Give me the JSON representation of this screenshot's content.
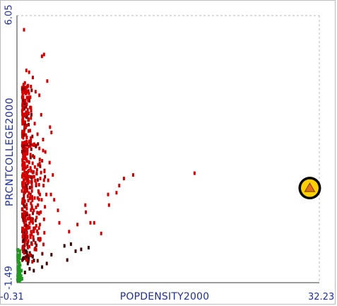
{
  "chart_data": {
    "type": "scatter",
    "title": "",
    "xlabel": "POPDENSITY2000",
    "ylabel": "PRCNTCOLLEGE2000",
    "xlim": [
      -0.31,
      32.23
    ],
    "ylim": [
      -1.49,
      6.05
    ],
    "x_ticks": [
      "-0.31",
      "32.23"
    ],
    "y_ticks": [
      "-1.49",
      "6.05"
    ],
    "grid": false,
    "colors": {
      "red": "#d20000",
      "dark": "#400000",
      "green": "#1e9a1e",
      "axis": "#1f2f9a",
      "highlight_ring": "#000000",
      "highlight_fill": "#ffd000",
      "highlight_core": "#e2701a"
    },
    "highlight": {
      "x": 31.2,
      "y": 1.18,
      "shape": "triangle"
    },
    "points": [
      {
        "x": 0.45,
        "y": 5.65,
        "c": "red"
      },
      {
        "x": 2.38,
        "y": 4.9,
        "c": "red"
      },
      {
        "x": 2.6,
        "y": 4.95,
        "c": "red"
      },
      {
        "x": 0.7,
        "y": 4.5,
        "c": "red"
      },
      {
        "x": 1.0,
        "y": 4.45,
        "c": "red"
      },
      {
        "x": 1.4,
        "y": 4.3,
        "c": "red"
      },
      {
        "x": 0.55,
        "y": 4.15,
        "c": "red"
      },
      {
        "x": 1.7,
        "y": 3.9,
        "c": "red"
      },
      {
        "x": 2.1,
        "y": 3.8,
        "c": "red"
      },
      {
        "x": 2.95,
        "y": 4.2,
        "c": "red"
      },
      {
        "x": 0.75,
        "y": 3.55,
        "c": "red"
      },
      {
        "x": 1.2,
        "y": 3.45,
        "c": "red"
      },
      {
        "x": 2.3,
        "y": 3.25,
        "c": "red"
      },
      {
        "x": 0.9,
        "y": 3.1,
        "c": "red"
      },
      {
        "x": 1.6,
        "y": 3.0,
        "c": "red"
      },
      {
        "x": 3.25,
        "y": 2.9,
        "c": "red"
      },
      {
        "x": 3.4,
        "y": 2.75,
        "c": "red"
      },
      {
        "x": 0.5,
        "y": 2.9,
        "c": "red"
      },
      {
        "x": 1.1,
        "y": 2.8,
        "c": "red"
      },
      {
        "x": 1.9,
        "y": 2.7,
        "c": "red"
      },
      {
        "x": 2.5,
        "y": 2.55,
        "c": "red"
      },
      {
        "x": 0.65,
        "y": 2.45,
        "c": "red"
      },
      {
        "x": 1.35,
        "y": 2.4,
        "c": "red"
      },
      {
        "x": 2.1,
        "y": 2.3,
        "c": "red"
      },
      {
        "x": 2.75,
        "y": 2.2,
        "c": "red"
      },
      {
        "x": 0.8,
        "y": 2.15,
        "c": "red"
      },
      {
        "x": 1.55,
        "y": 2.05,
        "c": "red"
      },
      {
        "x": 2.4,
        "y": 1.95,
        "c": "red"
      },
      {
        "x": 3.2,
        "y": 1.9,
        "c": "red"
      },
      {
        "x": 0.45,
        "y": 1.85,
        "c": "red"
      },
      {
        "x": 1.15,
        "y": 1.75,
        "c": "red"
      },
      {
        "x": 1.85,
        "y": 1.7,
        "c": "red"
      },
      {
        "x": 2.65,
        "y": 1.65,
        "c": "red"
      },
      {
        "x": 0.7,
        "y": 1.55,
        "c": "red"
      },
      {
        "x": 1.45,
        "y": 1.5,
        "c": "red"
      },
      {
        "x": 2.2,
        "y": 1.45,
        "c": "red"
      },
      {
        "x": 3.05,
        "y": 1.4,
        "c": "red"
      },
      {
        "x": 0.95,
        "y": 1.35,
        "c": "red"
      },
      {
        "x": 1.75,
        "y": 1.3,
        "c": "red"
      },
      {
        "x": 2.55,
        "y": 1.25,
        "c": "red"
      },
      {
        "x": 0.55,
        "y": 1.15,
        "c": "red"
      },
      {
        "x": 1.3,
        "y": 1.1,
        "c": "red"
      },
      {
        "x": 2.05,
        "y": 1.05,
        "c": "red"
      },
      {
        "x": 2.85,
        "y": 1.0,
        "c": "red"
      },
      {
        "x": 0.85,
        "y": 0.95,
        "c": "red"
      },
      {
        "x": 1.6,
        "y": 0.9,
        "c": "red"
      },
      {
        "x": 2.35,
        "y": 0.85,
        "c": "red"
      },
      {
        "x": 0.4,
        "y": 0.8,
        "c": "red"
      },
      {
        "x": 1.2,
        "y": 0.75,
        "c": "red"
      },
      {
        "x": 1.95,
        "y": 0.7,
        "c": "red"
      },
      {
        "x": 2.7,
        "y": 0.65,
        "c": "red"
      },
      {
        "x": 0.75,
        "y": 0.6,
        "c": "red"
      },
      {
        "x": 1.5,
        "y": 0.55,
        "c": "red"
      },
      {
        "x": 2.25,
        "y": 0.5,
        "c": "red"
      },
      {
        "x": 0.5,
        "y": 0.45,
        "c": "red"
      },
      {
        "x": 1.05,
        "y": 0.4,
        "c": "red"
      },
      {
        "x": 1.8,
        "y": 0.35,
        "c": "red"
      },
      {
        "x": 2.6,
        "y": 0.3,
        "c": "red"
      },
      {
        "x": 0.65,
        "y": 0.25,
        "c": "red"
      },
      {
        "x": 1.4,
        "y": 0.2,
        "c": "red"
      },
      {
        "x": 2.15,
        "y": 0.15,
        "c": "red"
      },
      {
        "x": 0.9,
        "y": 0.1,
        "c": "red"
      },
      {
        "x": 1.65,
        "y": 0.05,
        "c": "red"
      },
      {
        "x": 0.45,
        "y": 0.0,
        "c": "red"
      },
      {
        "x": 1.2,
        "y": -0.05,
        "c": "red"
      },
      {
        "x": 1.95,
        "y": -0.1,
        "c": "red"
      },
      {
        "x": 0.7,
        "y": -0.15,
        "c": "red"
      },
      {
        "x": 1.45,
        "y": -0.2,
        "c": "red"
      },
      {
        "x": 2.2,
        "y": -0.25,
        "c": "red"
      },
      {
        "x": 0.55,
        "y": -0.35,
        "c": "red"
      },
      {
        "x": 1.3,
        "y": -0.4,
        "c": "red"
      },
      {
        "x": 0.85,
        "y": -0.5,
        "c": "red"
      },
      {
        "x": 1.6,
        "y": -0.55,
        "c": "red"
      },
      {
        "x": 0.45,
        "y": -0.65,
        "c": "red"
      },
      {
        "x": 1.1,
        "y": -0.7,
        "c": "red"
      },
      {
        "x": 0.7,
        "y": -0.85,
        "c": "red"
      },
      {
        "x": 1.35,
        "y": -0.9,
        "c": "red"
      },
      {
        "x": 3.35,
        "y": 1.0,
        "c": "red"
      },
      {
        "x": 3.55,
        "y": 1.55,
        "c": "red"
      },
      {
        "x": 3.7,
        "y": 0.85,
        "c": "red"
      },
      {
        "x": 4.1,
        "y": 0.55,
        "c": "red"
      },
      {
        "x": 4.25,
        "y": 0.2,
        "c": "red"
      },
      {
        "x": 5.3,
        "y": -0.05,
        "c": "red"
      },
      {
        "x": 6.2,
        "y": 0.15,
        "c": "red"
      },
      {
        "x": 7.05,
        "y": 0.7,
        "c": "red"
      },
      {
        "x": 7.1,
        "y": 0.5,
        "c": "red"
      },
      {
        "x": 7.6,
        "y": 0.2,
        "c": "red"
      },
      {
        "x": 8.0,
        "y": 0.2,
        "c": "red"
      },
      {
        "x": 8.75,
        "y": -0.1,
        "c": "red"
      },
      {
        "x": 9.6,
        "y": 0.7,
        "c": "red"
      },
      {
        "x": 10.4,
        "y": 1.05,
        "c": "red"
      },
      {
        "x": 10.7,
        "y": 1.25,
        "c": "red"
      },
      {
        "x": 11.2,
        "y": 1.45,
        "c": "red"
      },
      {
        "x": 12.2,
        "y": 1.55,
        "c": "red"
      },
      {
        "x": 9.5,
        "y": 1.0,
        "c": "red"
      },
      {
        "x": 18.8,
        "y": 1.6,
        "c": "red"
      },
      {
        "x": 4.8,
        "y": -0.45,
        "c": "dark"
      },
      {
        "x": 5.5,
        "y": -0.4,
        "c": "dark"
      },
      {
        "x": 6.0,
        "y": -0.6,
        "c": "dark"
      },
      {
        "x": 6.6,
        "y": -0.55,
        "c": "dark"
      },
      {
        "x": 7.4,
        "y": -0.5,
        "c": "dark"
      },
      {
        "x": 5.1,
        "y": -0.85,
        "c": "dark"
      },
      {
        "x": 3.4,
        "y": -0.7,
        "c": "dark"
      },
      {
        "x": 2.9,
        "y": -0.95,
        "c": "dark"
      },
      {
        "x": 2.4,
        "y": -1.05,
        "c": "dark"
      },
      {
        "x": 0.4,
        "y": -0.3,
        "c": "dark"
      },
      {
        "x": 0.65,
        "y": -0.6,
        "c": "dark"
      },
      {
        "x": 0.85,
        "y": -0.95,
        "c": "dark"
      },
      {
        "x": 1.05,
        "y": -1.1,
        "c": "dark"
      },
      {
        "x": 1.5,
        "y": -1.15,
        "c": "dark"
      },
      {
        "x": 0.55,
        "y": -1.2,
        "c": "dark"
      },
      {
        "x": -0.1,
        "y": -0.9,
        "c": "green"
      },
      {
        "x": -0.05,
        "y": -1.0,
        "c": "green"
      },
      {
        "x": 0.0,
        "y": -1.1,
        "c": "green"
      },
      {
        "x": -0.12,
        "y": -1.2,
        "c": "green"
      },
      {
        "x": 0.05,
        "y": -1.25,
        "c": "green"
      },
      {
        "x": -0.05,
        "y": -1.35,
        "c": "green"
      },
      {
        "x": 0.1,
        "y": -1.4,
        "c": "green"
      },
      {
        "x": -0.15,
        "y": -1.45,
        "c": "green"
      },
      {
        "x": 0.15,
        "y": -1.3,
        "c": "green"
      },
      {
        "x": 0.2,
        "y": -1.15,
        "c": "green"
      },
      {
        "x": -0.2,
        "y": -1.05,
        "c": "green"
      },
      {
        "x": 0.25,
        "y": -1.38,
        "c": "green"
      }
    ]
  }
}
